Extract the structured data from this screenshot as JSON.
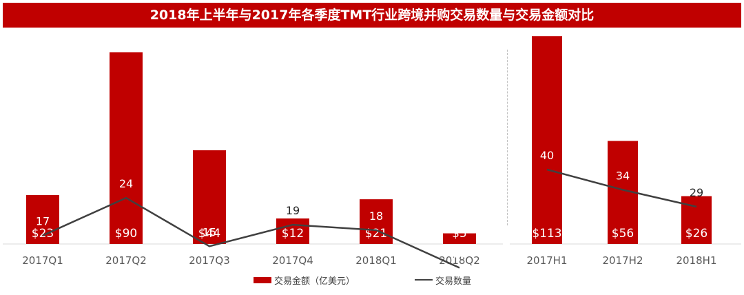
{
  "title": "2018年上半年与2017年各季度TMT行业跨境并购交易数量与交易金额对比",
  "colors": {
    "bar": "#c00000",
    "line": "#404040",
    "title_bg": "#c00000"
  },
  "legend": {
    "bar_label": "交易金额（亿美元）",
    "line_label": "交易数量"
  },
  "chart_data": [
    {
      "type": "bar",
      "panel": "quarterly",
      "categories": [
        "2017Q1",
        "2017Q2",
        "2017Q3",
        "2017Q4",
        "2018Q1",
        "2018Q2"
      ],
      "series": [
        {
          "name": "交易金额（亿美元）",
          "type": "bar",
          "values": [
            23,
            90,
            44,
            12,
            21,
            5
          ],
          "labels": [
            "$23",
            "$90",
            "$44",
            "$12",
            "$21",
            "$5"
          ]
        },
        {
          "name": "交易数量",
          "type": "line",
          "values": [
            17,
            24,
            15,
            19,
            18,
            11
          ],
          "labels": [
            "17",
            "24",
            "15",
            "19",
            "18",
            "11"
          ]
        }
      ]
    },
    {
      "type": "bar",
      "panel": "half-year",
      "categories": [
        "2017H1",
        "2017H2",
        "2018H1"
      ],
      "series": [
        {
          "name": "交易金额（亿美元）",
          "type": "bar",
          "values": [
            113,
            56,
            26
          ],
          "labels": [
            "$113",
            "$56",
            "$26"
          ]
        },
        {
          "name": "交易数量",
          "type": "line",
          "values": [
            40,
            34,
            29
          ],
          "labels": [
            "40",
            "34",
            "29"
          ]
        }
      ]
    }
  ]
}
